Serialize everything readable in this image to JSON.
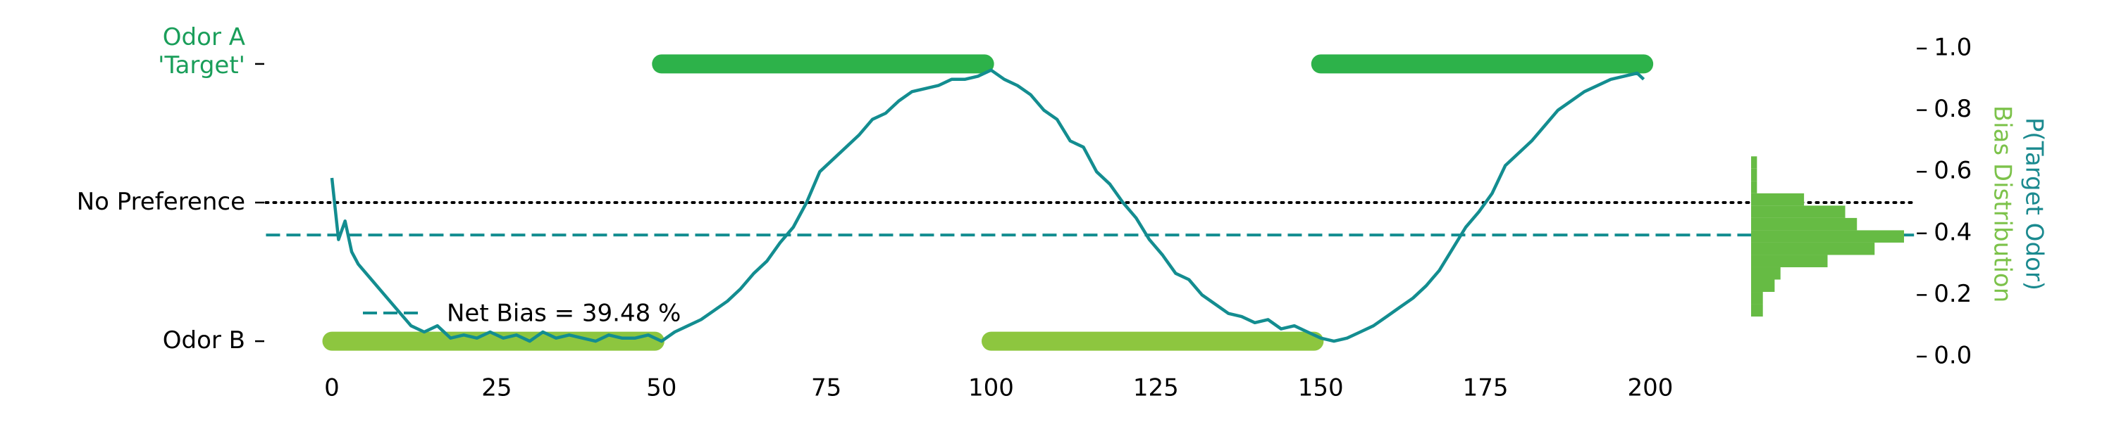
{
  "chart_data": {
    "type": "line",
    "xticks": [
      0,
      25,
      50,
      75,
      100,
      125,
      150,
      175,
      200
    ],
    "xlim": [
      -10,
      240
    ],
    "ylim": [
      -0.05,
      1.05
    ],
    "y2ticks": [
      {
        "value": 0,
        "label": "0.0"
      },
      0.2,
      0.4,
      0.6,
      0.8,
      {
        "value": 1,
        "label": "1.0"
      }
    ],
    "y2label": "P(Target Odor)",
    "y2label_color": "#1b8a8f",
    "odor_labels": [
      {
        "value": 0.95,
        "lines": [
          "Odor A",
          "'Target'"
        ],
        "color": "#1a9e5a"
      },
      {
        "value": 0.5,
        "lines": [
          "No Preference"
        ],
        "color": "#000000"
      },
      {
        "value": 0.05,
        "lines": [
          "Odor B"
        ],
        "color": "#000000"
      }
    ],
    "reference_line": {
      "value": 0.5,
      "style": "dotted",
      "color": "#000000"
    },
    "net_bias": {
      "value": 0.3948,
      "label": "Net Bias = 39.48 %",
      "color": "#138d90"
    },
    "blocks": [
      {
        "start": 0,
        "end": 49,
        "level": 0.05,
        "color": "#8dc63f"
      },
      {
        "start": 50,
        "end": 99,
        "level": 0.95,
        "color": "#2db24a"
      },
      {
        "start": 100,
        "end": 149,
        "level": 0.05,
        "color": "#8dc63f"
      },
      {
        "start": 150,
        "end": 199,
        "level": 0.95,
        "color": "#2db24a"
      }
    ],
    "series": [
      {
        "color": "#138d90",
        "x": [
          0,
          1,
          2,
          3,
          4,
          6,
          8,
          10,
          12,
          14,
          16,
          18,
          20,
          22,
          24,
          26,
          28,
          30,
          32,
          34,
          36,
          38,
          40,
          42,
          44,
          46,
          48,
          50,
          52,
          54,
          56,
          58,
          60,
          62,
          64,
          66,
          68,
          70,
          72,
          74,
          76,
          78,
          80,
          82,
          84,
          86,
          88,
          90,
          92,
          94,
          96,
          98,
          100,
          102,
          104,
          106,
          108,
          110,
          112,
          114,
          116,
          118,
          120,
          122,
          124,
          126,
          128,
          130,
          132,
          134,
          136,
          138,
          140,
          142,
          144,
          146,
          148,
          150,
          152,
          154,
          156,
          158,
          160,
          162,
          164,
          166,
          168,
          170,
          172,
          174,
          176,
          178,
          180,
          182,
          184,
          186,
          188,
          190,
          192,
          194,
          196,
          198,
          199
        ],
        "values": [
          0.58,
          0.38,
          0.44,
          0.34,
          0.3,
          0.25,
          0.2,
          0.15,
          0.1,
          0.08,
          0.1,
          0.06,
          0.07,
          0.06,
          0.08,
          0.06,
          0.07,
          0.05,
          0.08,
          0.06,
          0.07,
          0.06,
          0.05,
          0.07,
          0.06,
          0.06,
          0.07,
          0.05,
          0.08,
          0.1,
          0.12,
          0.15,
          0.18,
          0.22,
          0.27,
          0.31,
          0.37,
          0.42,
          0.5,
          0.6,
          0.64,
          0.68,
          0.72,
          0.77,
          0.79,
          0.83,
          0.86,
          0.87,
          0.88,
          0.9,
          0.9,
          0.91,
          0.93,
          0.9,
          0.88,
          0.85,
          0.8,
          0.77,
          0.7,
          0.68,
          0.6,
          0.56,
          0.5,
          0.45,
          0.38,
          0.33,
          0.27,
          0.25,
          0.2,
          0.17,
          0.14,
          0.13,
          0.11,
          0.12,
          0.09,
          0.1,
          0.08,
          0.06,
          0.05,
          0.06,
          0.08,
          0.1,
          0.13,
          0.16,
          0.19,
          0.23,
          0.28,
          0.35,
          0.42,
          0.47,
          0.53,
          0.62,
          0.66,
          0.7,
          0.75,
          0.8,
          0.83,
          0.86,
          0.88,
          0.9,
          0.91,
          0.92,
          0.9
        ]
      }
    ],
    "histogram": {
      "label": "Bias Distribution",
      "color": "#66bb44",
      "label_color": "#7cc24a",
      "bins": [
        0.13,
        0.17,
        0.21,
        0.25,
        0.29,
        0.33,
        0.37,
        0.41,
        0.45,
        0.49,
        0.53,
        0.57,
        0.61,
        0.65
      ],
      "counts": [
        2,
        2,
        4,
        5,
        13,
        21,
        26,
        18,
        16,
        9,
        1,
        1,
        1
      ],
      "xlim": [
        0,
        26
      ]
    }
  }
}
